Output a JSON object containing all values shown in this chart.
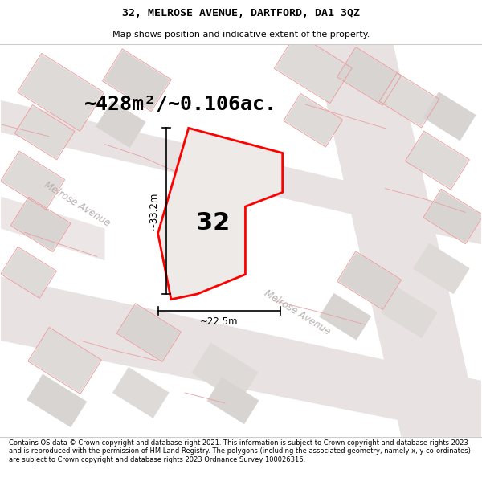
{
  "title_line1": "32, MELROSE AVENUE, DARTFORD, DA1 3QZ",
  "title_line2": "Map shows position and indicative extent of the property.",
  "area_text": "~428m²/~0.106ac.",
  "property_number": "32",
  "dim_vertical": "~33.2m",
  "dim_horizontal": "~22.5m",
  "street_label_nw": "Melrose Avenue",
  "street_label_se": "Melrose Avenue",
  "footer_text": "Contains OS data © Crown copyright and database right 2021. This information is subject to Crown copyright and database rights 2023 and is reproduced with the permission of HM Land Registry. The polygons (including the associated geometry, namely x, y co-ordinates) are subject to Crown copyright and database rights 2023 Ordnance Survey 100026316.",
  "map_bg": "#f5f0f0",
  "road_color": "#e8e2e2",
  "block_fill": "#e0dada",
  "building_fill": "#d8d2d2",
  "pink_edge": "#e8a0a0",
  "plot_fill": "#ede8e8",
  "plot_edge": "#ff0000",
  "title_bg": "white",
  "footer_bg": "white",
  "street_text_color": "#b8b0b0",
  "dim_color": "black",
  "area_text_size": 18,
  "prop_num_size": 22
}
